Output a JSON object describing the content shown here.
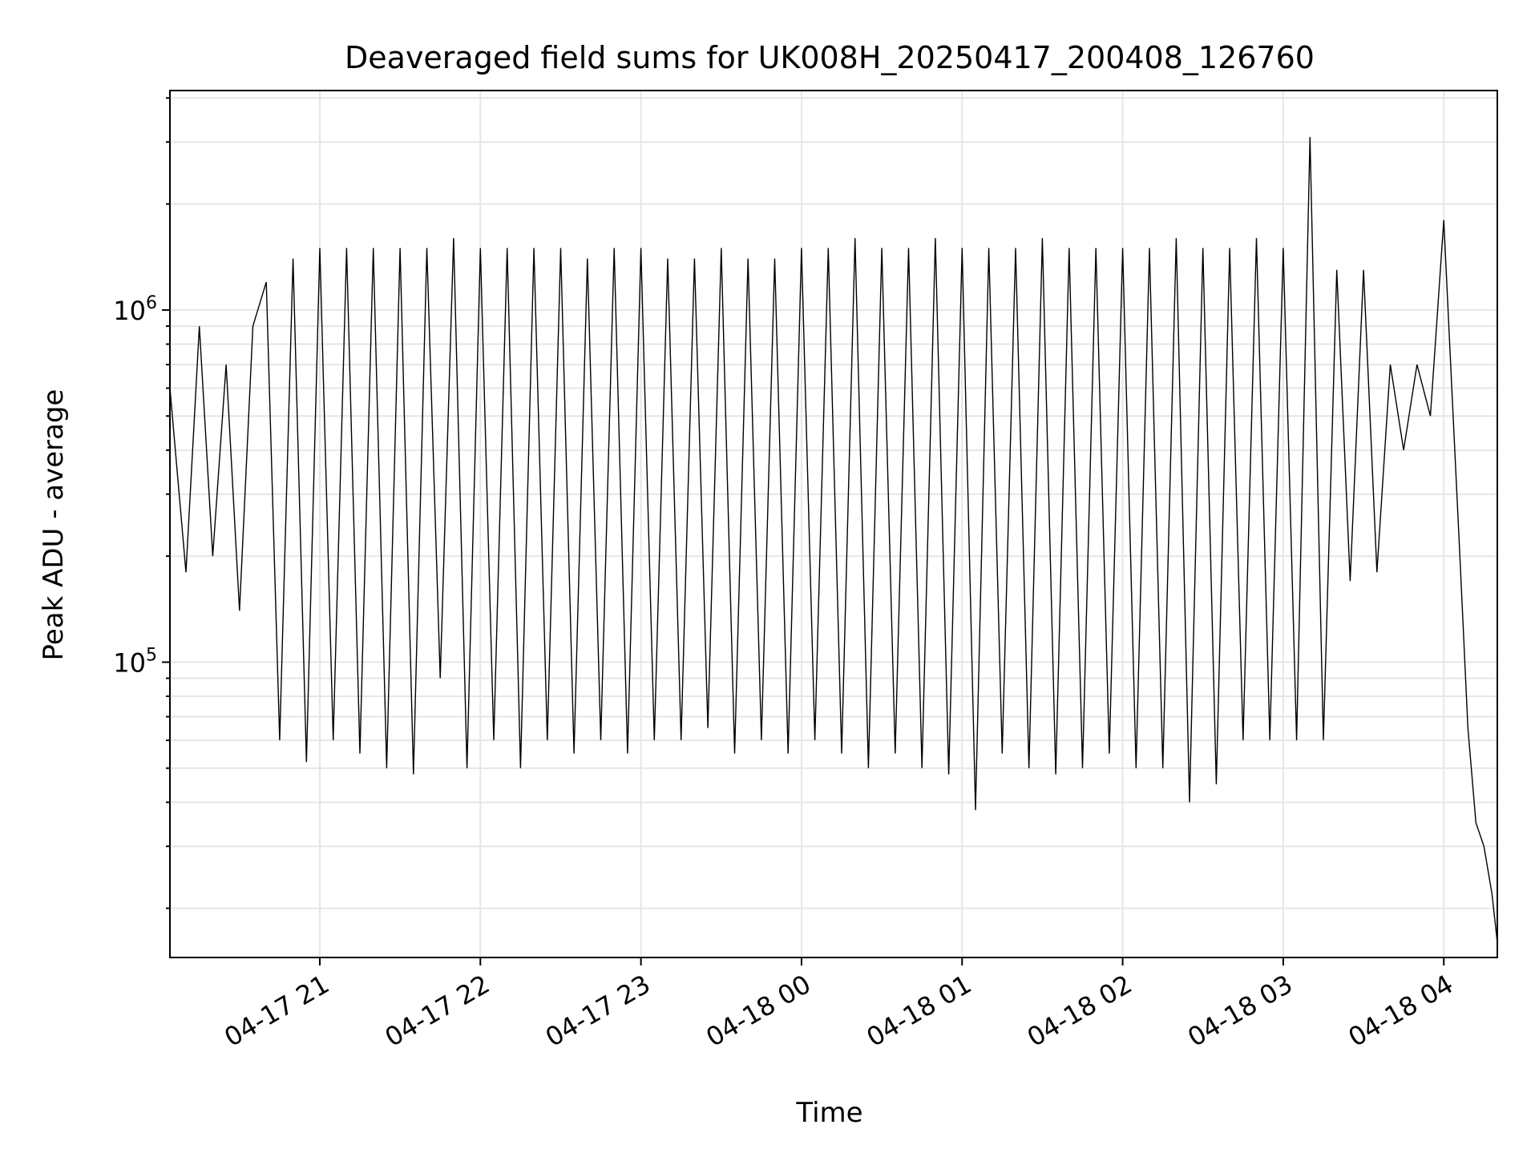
{
  "chart_data": {
    "type": "line",
    "title": "Deaveraged field sums for UK008H_20250417_200408_126760",
    "xlabel": "Time",
    "ylabel": "Peak ADU - average",
    "x_scale": "time",
    "y_scale": "log",
    "xlim": [
      "2025-04-17 20:04",
      "2025-04-18 04:20"
    ],
    "ylim": [
      14500,
      4200000
    ],
    "x_ticks": [
      {
        "value": "2025-04-17 21:00",
        "label": "04-17 21"
      },
      {
        "value": "2025-04-17 22:00",
        "label": "04-17 22"
      },
      {
        "value": "2025-04-17 23:00",
        "label": "04-17 23"
      },
      {
        "value": "2025-04-18 00:00",
        "label": "04-18 00"
      },
      {
        "value": "2025-04-18 01:00",
        "label": "04-18 01"
      },
      {
        "value": "2025-04-18 02:00",
        "label": "04-18 02"
      },
      {
        "value": "2025-04-18 03:00",
        "label": "04-18 03"
      },
      {
        "value": "2025-04-18 04:00",
        "label": "04-18 04"
      }
    ],
    "y_major_ticks": [
      {
        "value": 100000,
        "base": "10",
        "exp": "5"
      },
      {
        "value": 1000000,
        "base": "10",
        "exp": "6"
      }
    ],
    "grid": true,
    "line_color": "#000000",
    "grid_color": "#e6e6e6",
    "series": [
      {
        "x": [
          "2025-04-17 20:04",
          "2025-04-17 20:10",
          "2025-04-17 20:15",
          "2025-04-17 20:20",
          "2025-04-17 20:25",
          "2025-04-17 20:30",
          "2025-04-17 20:35",
          "2025-04-17 20:40",
          "2025-04-17 20:45",
          "2025-04-17 20:50",
          "2025-04-17 20:55",
          "2025-04-17 21:00",
          "2025-04-17 21:05",
          "2025-04-17 21:10",
          "2025-04-17 21:15",
          "2025-04-17 21:20",
          "2025-04-17 21:25",
          "2025-04-17 21:30",
          "2025-04-17 21:35",
          "2025-04-17 21:40",
          "2025-04-17 21:45",
          "2025-04-17 21:50",
          "2025-04-17 21:55",
          "2025-04-17 22:00",
          "2025-04-17 22:05",
          "2025-04-17 22:10",
          "2025-04-17 22:15",
          "2025-04-17 22:20",
          "2025-04-17 22:25",
          "2025-04-17 22:30",
          "2025-04-17 22:35",
          "2025-04-17 22:40",
          "2025-04-17 22:45",
          "2025-04-17 22:50",
          "2025-04-17 22:55",
          "2025-04-17 23:00",
          "2025-04-17 23:05",
          "2025-04-17 23:10",
          "2025-04-17 23:15",
          "2025-04-17 23:20",
          "2025-04-17 23:25",
          "2025-04-17 23:30",
          "2025-04-17 23:35",
          "2025-04-17 23:40",
          "2025-04-17 23:45",
          "2025-04-17 23:50",
          "2025-04-17 23:55",
          "2025-04-18 00:00",
          "2025-04-18 00:05",
          "2025-04-18 00:10",
          "2025-04-18 00:15",
          "2025-04-18 00:20",
          "2025-04-18 00:25",
          "2025-04-18 00:30",
          "2025-04-18 00:35",
          "2025-04-18 00:40",
          "2025-04-18 00:45",
          "2025-04-18 00:50",
          "2025-04-18 00:55",
          "2025-04-18 01:00",
          "2025-04-18 01:05",
          "2025-04-18 01:10",
          "2025-04-18 01:15",
          "2025-04-18 01:20",
          "2025-04-18 01:25",
          "2025-04-18 01:30",
          "2025-04-18 01:35",
          "2025-04-18 01:40",
          "2025-04-18 01:45",
          "2025-04-18 01:50",
          "2025-04-18 01:55",
          "2025-04-18 02:00",
          "2025-04-18 02:05",
          "2025-04-18 02:10",
          "2025-04-18 02:15",
          "2025-04-18 02:20",
          "2025-04-18 02:25",
          "2025-04-18 02:30",
          "2025-04-18 02:35",
          "2025-04-18 02:40",
          "2025-04-18 02:45",
          "2025-04-18 02:50",
          "2025-04-18 02:55",
          "2025-04-18 03:00",
          "2025-04-18 03:05",
          "2025-04-18 03:10",
          "2025-04-18 03:15",
          "2025-04-18 03:20",
          "2025-04-18 03:25",
          "2025-04-18 03:30",
          "2025-04-18 03:35",
          "2025-04-18 03:40",
          "2025-04-18 03:45",
          "2025-04-18 03:50",
          "2025-04-18 03:55",
          "2025-04-18 04:00",
          "2025-04-18 04:03",
          "2025-04-18 04:06",
          "2025-04-18 04:09",
          "2025-04-18 04:12",
          "2025-04-18 04:15",
          "2025-04-18 04:18",
          "2025-04-18 04:20"
        ],
        "y": [
          600000,
          180000,
          900000,
          200000,
          700000,
          140000,
          900000,
          1200000,
          60000,
          1400000,
          52000,
          1500000,
          60000,
          1500000,
          55000,
          1500000,
          50000,
          1500000,
          48000,
          1500000,
          90000,
          1600000,
          50000,
          1500000,
          60000,
          1500000,
          50000,
          1500000,
          60000,
          1500000,
          55000,
          1400000,
          60000,
          1500000,
          55000,
          1500000,
          60000,
          1400000,
          60000,
          1400000,
          65000,
          1500000,
          55000,
          1400000,
          60000,
          1400000,
          55000,
          1500000,
          60000,
          1500000,
          55000,
          1600000,
          50000,
          1500000,
          55000,
          1500000,
          50000,
          1600000,
          48000,
          1500000,
          38000,
          1500000,
          55000,
          1500000,
          50000,
          1600000,
          48000,
          1500000,
          50000,
          1500000,
          55000,
          1500000,
          50000,
          1500000,
          50000,
          1600000,
          40000,
          1500000,
          45000,
          1500000,
          60000,
          1600000,
          60000,
          1500000,
          60000,
          3100000,
          60000,
          1300000,
          170000,
          1300000,
          180000,
          700000,
          400000,
          700000,
          500000,
          1800000,
          600000,
          200000,
          65000,
          35000,
          30000,
          22000,
          16000
        ]
      }
    ]
  }
}
